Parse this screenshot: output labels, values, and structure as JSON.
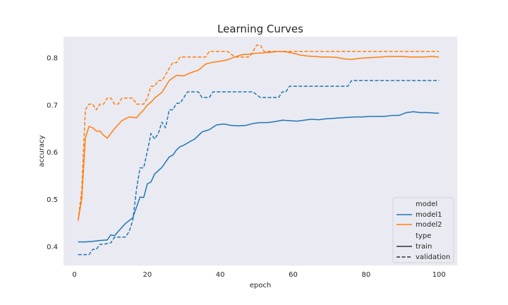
{
  "chart_data": {
    "type": "line",
    "title": "Learning Curves",
    "xlabel": "epoch",
    "ylabel": "accuracy",
    "xlim": [
      -3,
      105
    ],
    "ylim": [
      0.36,
      0.845
    ],
    "xticks": [
      0,
      20,
      40,
      60,
      80,
      100
    ],
    "yticks": [
      0.4,
      0.5,
      0.6,
      0.7,
      0.8
    ],
    "grid": false,
    "background": "#eaeaf2",
    "legend": {
      "placement": "lower-right",
      "hue_title": "model",
      "style_title": "type",
      "hue_entries": [
        {
          "label": "model1",
          "color": "#1f77b4"
        },
        {
          "label": "model2",
          "color": "#ff7f0e"
        }
      ],
      "style_entries": [
        {
          "label": "train",
          "dash": "solid"
        },
        {
          "label": "validation",
          "dash": "dashed"
        }
      ]
    },
    "series": [
      {
        "model": "model1",
        "type": "train",
        "color": "#1f77b4",
        "dash": "solid",
        "x": [
          1,
          3,
          5,
          7,
          9,
          10,
          11,
          12,
          14,
          16,
          18,
          19,
          20,
          21,
          22,
          24,
          26,
          27,
          28,
          29,
          30,
          32,
          33,
          35,
          37,
          39,
          41,
          43,
          45,
          47,
          49,
          51,
          53,
          55,
          57,
          59,
          61,
          63,
          65,
          67,
          69,
          71,
          73,
          75,
          77,
          79,
          81,
          83,
          85,
          87,
          89,
          91,
          93,
          95,
          97,
          99,
          100
        ],
        "y": [
          0.41,
          0.41,
          0.411,
          0.413,
          0.414,
          0.425,
          0.423,
          0.432,
          0.449,
          0.461,
          0.505,
          0.504,
          0.533,
          0.537,
          0.554,
          0.568,
          0.59,
          0.594,
          0.605,
          0.612,
          0.615,
          0.624,
          0.628,
          0.643,
          0.648,
          0.658,
          0.66,
          0.657,
          0.656,
          0.657,
          0.661,
          0.663,
          0.663,
          0.665,
          0.668,
          0.667,
          0.666,
          0.668,
          0.67,
          0.669,
          0.671,
          0.672,
          0.673,
          0.674,
          0.675,
          0.675,
          0.676,
          0.676,
          0.676,
          0.678,
          0.678,
          0.684,
          0.686,
          0.684,
          0.684,
          0.683,
          0.683
        ]
      },
      {
        "model": "model1",
        "type": "validation",
        "color": "#1f77b4",
        "dash": "dashed",
        "x": [
          1,
          3,
          4,
          5,
          6,
          7,
          8,
          10,
          11,
          12,
          14,
          15,
          16,
          17,
          18,
          19,
          20,
          21,
          22,
          23,
          24,
          25,
          26,
          27,
          28,
          29,
          30,
          31,
          33,
          34,
          35,
          36,
          37,
          38,
          39,
          41,
          43,
          45,
          47,
          49,
          51,
          53,
          55,
          56,
          57,
          58,
          59,
          61,
          63,
          65,
          67,
          69,
          71,
          73,
          75,
          76,
          77,
          79,
          81,
          83,
          85,
          87,
          89,
          91,
          93,
          95,
          97,
          99,
          100
        ],
        "y": [
          0.383,
          0.383,
          0.383,
          0.394,
          0.394,
          0.405,
          0.405,
          0.408,
          0.42,
          0.42,
          0.42,
          0.432,
          0.455,
          0.52,
          0.567,
          0.567,
          0.602,
          0.64,
          0.628,
          0.64,
          0.664,
          0.652,
          0.69,
          0.69,
          0.704,
          0.704,
          0.716,
          0.728,
          0.728,
          0.728,
          0.716,
          0.716,
          0.716,
          0.728,
          0.728,
          0.728,
          0.728,
          0.728,
          0.728,
          0.728,
          0.716,
          0.716,
          0.716,
          0.716,
          0.728,
          0.728,
          0.74,
          0.74,
          0.74,
          0.74,
          0.74,
          0.74,
          0.74,
          0.74,
          0.74,
          0.752,
          0.752,
          0.752,
          0.752,
          0.752,
          0.752,
          0.752,
          0.752,
          0.752,
          0.752,
          0.752,
          0.752,
          0.752,
          0.752
        ]
      },
      {
        "model": "model2",
        "type": "train",
        "color": "#ff7f0e",
        "dash": "solid",
        "x": [
          1,
          2,
          3,
          4,
          5,
          6,
          7,
          8,
          9,
          10,
          11,
          13,
          15,
          17,
          18,
          19,
          20,
          21,
          22,
          24,
          26,
          28,
          30,
          32,
          34,
          36,
          38,
          40,
          42,
          44,
          46,
          48,
          50,
          52,
          54,
          56,
          58,
          60,
          62,
          64,
          66,
          68,
          70,
          72,
          74,
          76,
          78,
          80,
          82,
          84,
          86,
          88,
          90,
          92,
          94,
          96,
          98,
          100
        ],
        "y": [
          0.455,
          0.5,
          0.63,
          0.655,
          0.652,
          0.645,
          0.645,
          0.636,
          0.63,
          0.64,
          0.65,
          0.667,
          0.675,
          0.673,
          0.682,
          0.69,
          0.7,
          0.706,
          0.715,
          0.727,
          0.752,
          0.763,
          0.762,
          0.769,
          0.774,
          0.787,
          0.791,
          0.793,
          0.796,
          0.802,
          0.807,
          0.808,
          0.81,
          0.811,
          0.812,
          0.814,
          0.813,
          0.81,
          0.806,
          0.804,
          0.803,
          0.802,
          0.802,
          0.801,
          0.798,
          0.797,
          0.799,
          0.8,
          0.801,
          0.802,
          0.803,
          0.803,
          0.803,
          0.802,
          0.802,
          0.802,
          0.803,
          0.802
        ]
      },
      {
        "model": "model2",
        "type": "validation",
        "color": "#ff7f0e",
        "dash": "dashed",
        "x": [
          1,
          2,
          3,
          4,
          5,
          6,
          7,
          8,
          9,
          10,
          11,
          12,
          13,
          14,
          15,
          16,
          17,
          18,
          19,
          20,
          21,
          22,
          23,
          24,
          25,
          26,
          27,
          28,
          29,
          30,
          32,
          34,
          35,
          36,
          37,
          38,
          40,
          42,
          44,
          45,
          46,
          48,
          49,
          50,
          51,
          52,
          53,
          55,
          57,
          58,
          60,
          62,
          64,
          66,
          68,
          70,
          72,
          74,
          76,
          78,
          80,
          82,
          84,
          86,
          88,
          90,
          92,
          94,
          96,
          98,
          100
        ],
        "y": [
          0.455,
          0.52,
          0.69,
          0.702,
          0.702,
          0.69,
          0.702,
          0.702,
          0.715,
          0.715,
          0.702,
          0.702,
          0.715,
          0.715,
          0.715,
          0.715,
          0.702,
          0.702,
          0.702,
          0.715,
          0.74,
          0.74,
          0.752,
          0.752,
          0.764,
          0.778,
          0.79,
          0.79,
          0.802,
          0.802,
          0.802,
          0.802,
          0.802,
          0.802,
          0.814,
          0.814,
          0.814,
          0.814,
          0.802,
          0.802,
          0.802,
          0.802,
          0.814,
          0.827,
          0.827,
          0.814,
          0.814,
          0.814,
          0.814,
          0.814,
          0.814,
          0.814,
          0.814,
          0.814,
          0.814,
          0.814,
          0.814,
          0.814,
          0.814,
          0.814,
          0.814,
          0.814,
          0.814,
          0.814,
          0.814,
          0.814,
          0.814,
          0.814,
          0.814,
          0.814,
          0.814
        ]
      }
    ]
  }
}
